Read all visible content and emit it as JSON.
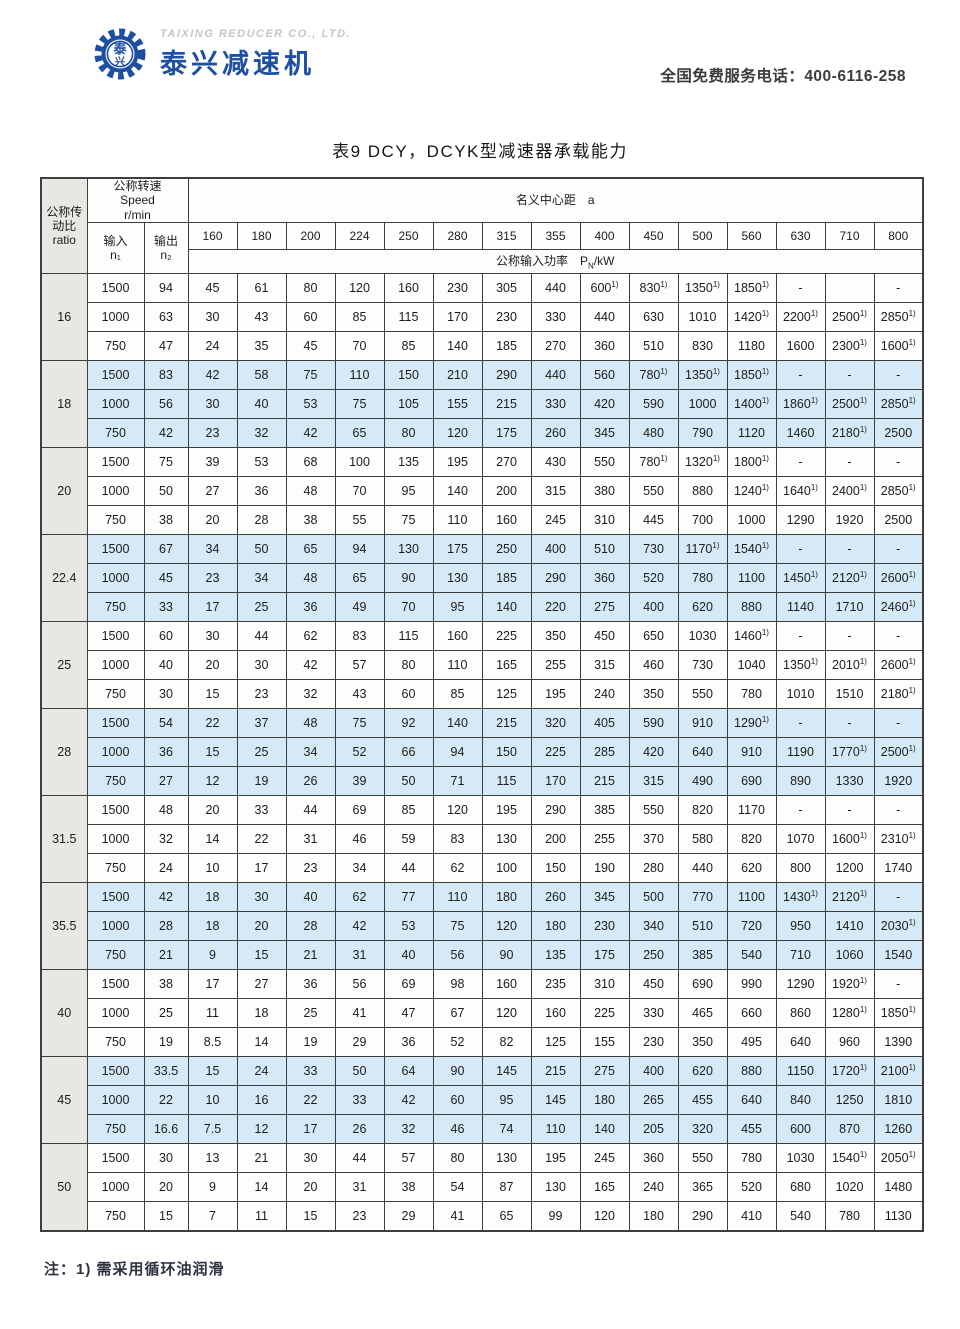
{
  "page": {
    "brand": {
      "company_en": "TAIXING REDUCER CO., LTD.",
      "company_cn": "泰兴减速机",
      "logo_char_top": "泰",
      "logo_char_bottom": "兴"
    },
    "hotline": "全国免费服务电话：400-6116-258",
    "title": "表9  DCY，DCYK型减速器承载能力",
    "footnote": "注：1) 需采用循环油润滑"
  },
  "colors": {
    "brand_blue": "#1e4fa0",
    "row_tint": "#d5eaf6",
    "ratio_column_bg": "#e9e7e1",
    "border": "#3e3e3e"
  },
  "table": {
    "footnote_marker": "1)",
    "header": {
      "ratio_lines": [
        "公称传",
        "动比",
        "ratio"
      ],
      "speed_lines": [
        "公称转速",
        "Speed",
        "r/min"
      ],
      "input_lines": [
        "输入",
        "n₁"
      ],
      "output_lines": [
        "输出",
        "n₂"
      ],
      "center_distance_label": "名义中心距　a",
      "power_prefix": "公称输入功率",
      "power_sym": "P",
      "power_sub": "N",
      "power_unit": "/kW",
      "distances": [
        160,
        180,
        200,
        224,
        250,
        280,
        315,
        355,
        400,
        450,
        500,
        560,
        630,
        710,
        800
      ]
    },
    "groups": [
      {
        "ratio": "16",
        "shaded": false,
        "rows": [
          {
            "n1": "1500",
            "n2": "94",
            "values": [
              "45",
              "61",
              "80",
              "120",
              "160",
              "230",
              "305",
              "440",
              "600^",
              "830^",
              "1350^",
              "1850^",
              "-",
              "",
              "-"
            ]
          },
          {
            "n1": "1000",
            "n2": "63",
            "values": [
              "30",
              "43",
              "60",
              "85",
              "115",
              "170",
              "230",
              "330",
              "440",
              "630",
              "1010",
              "1420^",
              "2200^",
              "2500^",
              "2850^"
            ]
          },
          {
            "n1": "750",
            "n2": "47",
            "values": [
              "24",
              "35",
              "45",
              "70",
              "85",
              "140",
              "185",
              "270",
              "360",
              "510",
              "830",
              "1180",
              "1600",
              "2300^",
              "1600^"
            ]
          }
        ]
      },
      {
        "ratio": "18",
        "shaded": true,
        "rows": [
          {
            "n1": "1500",
            "n2": "83",
            "values": [
              "42",
              "58",
              "75",
              "110",
              "150",
              "210",
              "290",
              "440",
              "560",
              "780^",
              "1350^",
              "1850^",
              "-",
              "-",
              "-"
            ]
          },
          {
            "n1": "1000",
            "n2": "56",
            "values": [
              "30",
              "40",
              "53",
              "75",
              "105",
              "155",
              "215",
              "330",
              "420",
              "590",
              "1000",
              "1400^",
              "1860^",
              "2500^",
              "2850^"
            ]
          },
          {
            "n1": "750",
            "n2": "42",
            "values": [
              "23",
              "32",
              "42",
              "65",
              "80",
              "120",
              "175",
              "260",
              "345",
              "480",
              "790",
              "1120",
              "1460",
              "2180^",
              "2500"
            ]
          }
        ]
      },
      {
        "ratio": "20",
        "shaded": false,
        "rows": [
          {
            "n1": "1500",
            "n2": "75",
            "values": [
              "39",
              "53",
              "68",
              "100",
              "135",
              "195",
              "270",
              "430",
              "550",
              "780^",
              "1320^",
              "1800^",
              "-",
              "-",
              "-"
            ]
          },
          {
            "n1": "1000",
            "n2": "50",
            "values": [
              "27",
              "36",
              "48",
              "70",
              "95",
              "140",
              "200",
              "315",
              "380",
              "550",
              "880",
              "1240^",
              "1640^",
              "2400^",
              "2850^"
            ]
          },
          {
            "n1": "750",
            "n2": "38",
            "values": [
              "20",
              "28",
              "38",
              "55",
              "75",
              "110",
              "160",
              "245",
              "310",
              "445",
              "700",
              "1000",
              "1290",
              "1920",
              "2500"
            ]
          }
        ]
      },
      {
        "ratio": "22.4",
        "shaded": true,
        "rows": [
          {
            "n1": "1500",
            "n2": "67",
            "values": [
              "34",
              "50",
              "65",
              "94",
              "130",
              "175",
              "250",
              "400",
              "510",
              "730",
              "1170^",
              "1540^",
              "-",
              "-",
              "-"
            ]
          },
          {
            "n1": "1000",
            "n2": "45",
            "values": [
              "23",
              "34",
              "48",
              "65",
              "90",
              "130",
              "185",
              "290",
              "360",
              "520",
              "780",
              "1100",
              "1450^",
              "2120^",
              "2600^"
            ]
          },
          {
            "n1": "750",
            "n2": "33",
            "values": [
              "17",
              "25",
              "36",
              "49",
              "70",
              "95",
              "140",
              "220",
              "275",
              "400",
              "620",
              "880",
              "1140",
              "1710",
              "2460^"
            ]
          }
        ]
      },
      {
        "ratio": "25",
        "shaded": false,
        "rows": [
          {
            "n1": "1500",
            "n2": "60",
            "values": [
              "30",
              "44",
              "62",
              "83",
              "115",
              "160",
              "225",
              "350",
              "450",
              "650",
              "1030",
              "1460^",
              "-",
              "-",
              "-"
            ]
          },
          {
            "n1": "1000",
            "n2": "40",
            "values": [
              "20",
              "30",
              "42",
              "57",
              "80",
              "110",
              "165",
              "255",
              "315",
              "460",
              "730",
              "1040",
              "1350^",
              "2010^",
              "2600^"
            ]
          },
          {
            "n1": "750",
            "n2": "30",
            "values": [
              "15",
              "23",
              "32",
              "43",
              "60",
              "85",
              "125",
              "195",
              "240",
              "350",
              "550",
              "780",
              "1010",
              "1510",
              "2180^"
            ]
          }
        ]
      },
      {
        "ratio": "28",
        "shaded": true,
        "rows": [
          {
            "n1": "1500",
            "n2": "54",
            "values": [
              "22",
              "37",
              "48",
              "75",
              "92",
              "140",
              "215",
              "320",
              "405",
              "590",
              "910",
              "1290^",
              "-",
              "-",
              "-"
            ]
          },
          {
            "n1": "1000",
            "n2": "36",
            "values": [
              "15",
              "25",
              "34",
              "52",
              "66",
              "94",
              "150",
              "225",
              "285",
              "420",
              "640",
              "910",
              "1190",
              "1770^",
              "2500^"
            ]
          },
          {
            "n1": "750",
            "n2": "27",
            "values": [
              "12",
              "19",
              "26",
              "39",
              "50",
              "71",
              "115",
              "170",
              "215",
              "315",
              "490",
              "690",
              "890",
              "1330",
              "1920"
            ]
          }
        ]
      },
      {
        "ratio": "31.5",
        "shaded": false,
        "rows": [
          {
            "n1": "1500",
            "n2": "48",
            "values": [
              "20",
              "33",
              "44",
              "69",
              "85",
              "120",
              "195",
              "290",
              "385",
              "550",
              "820",
              "1170",
              "-",
              "-",
              "-"
            ]
          },
          {
            "n1": "1000",
            "n2": "32",
            "values": [
              "14",
              "22",
              "31",
              "46",
              "59",
              "83",
              "130",
              "200",
              "255",
              "370",
              "580",
              "820",
              "1070",
              "1600^",
              "2310^"
            ]
          },
          {
            "n1": "750",
            "n2": "24",
            "values": [
              "10",
              "17",
              "23",
              "34",
              "44",
              "62",
              "100",
              "150",
              "190",
              "280",
              "440",
              "620",
              "800",
              "1200",
              "1740"
            ]
          }
        ]
      },
      {
        "ratio": "35.5",
        "shaded": true,
        "rows": [
          {
            "n1": "1500",
            "n2": "42",
            "values": [
              "18",
              "30",
              "40",
              "62",
              "77",
              "110",
              "180",
              "260",
              "345",
              "500",
              "770",
              "1100",
              "1430^",
              "2120^",
              "-"
            ]
          },
          {
            "n1": "1000",
            "n2": "28",
            "values": [
              "18",
              "20",
              "28",
              "42",
              "53",
              "75",
              "120",
              "180",
              "230",
              "340",
              "510",
              "720",
              "950",
              "1410",
              "2030^"
            ]
          },
          {
            "n1": "750",
            "n2": "21",
            "values": [
              "9",
              "15",
              "21",
              "31",
              "40",
              "56",
              "90",
              "135",
              "175",
              "250",
              "385",
              "540",
              "710",
              "1060",
              "1540"
            ]
          }
        ]
      },
      {
        "ratio": "40",
        "shaded": false,
        "rows": [
          {
            "n1": "1500",
            "n2": "38",
            "values": [
              "17",
              "27",
              "36",
              "56",
              "69",
              "98",
              "160",
              "235",
              "310",
              "450",
              "690",
              "990",
              "1290",
              "1920^",
              "-"
            ]
          },
          {
            "n1": "1000",
            "n2": "25",
            "values": [
              "11",
              "18",
              "25",
              "41",
              "47",
              "67",
              "120",
              "160",
              "225",
              "330",
              "465",
              "660",
              "860",
              "1280^",
              "1850^"
            ]
          },
          {
            "n1": "750",
            "n2": "19",
            "values": [
              "8.5",
              "14",
              "19",
              "29",
              "36",
              "52",
              "82",
              "125",
              "155",
              "230",
              "350",
              "495",
              "640",
              "960",
              "1390"
            ]
          }
        ]
      },
      {
        "ratio": "45",
        "shaded": true,
        "rows": [
          {
            "n1": "1500",
            "n2": "33.5",
            "values": [
              "15",
              "24",
              "33",
              "50",
              "64",
              "90",
              "145",
              "215",
              "275",
              "400",
              "620",
              "880",
              "1150",
              "1720^",
              "2100^"
            ]
          },
          {
            "n1": "1000",
            "n2": "22",
            "values": [
              "10",
              "16",
              "22",
              "33",
              "42",
              "60",
              "95",
              "145",
              "180",
              "265",
              "455",
              "640",
              "840",
              "1250",
              "1810"
            ]
          },
          {
            "n1": "750",
            "n2": "16.6",
            "values": [
              "7.5",
              "12",
              "17",
              "26",
              "32",
              "46",
              "74",
              "110",
              "140",
              "205",
              "320",
              "455",
              "600",
              "870",
              "1260"
            ]
          }
        ]
      },
      {
        "ratio": "50",
        "shaded": false,
        "rows": [
          {
            "n1": "1500",
            "n2": "30",
            "values": [
              "13",
              "21",
              "30",
              "44",
              "57",
              "80",
              "130",
              "195",
              "245",
              "360",
              "550",
              "780",
              "1030",
              "1540^",
              "2050^"
            ]
          },
          {
            "n1": "1000",
            "n2": "20",
            "values": [
              "9",
              "14",
              "20",
              "31",
              "38",
              "54",
              "87",
              "130",
              "165",
              "240",
              "365",
              "520",
              "680",
              "1020",
              "1480"
            ]
          },
          {
            "n1": "750",
            "n2": "15",
            "values": [
              "7",
              "11",
              "15",
              "23",
              "29",
              "41",
              "65",
              "99",
              "120",
              "180",
              "290",
              "410",
              "540",
              "780",
              "1130"
            ]
          }
        ]
      }
    ]
  }
}
